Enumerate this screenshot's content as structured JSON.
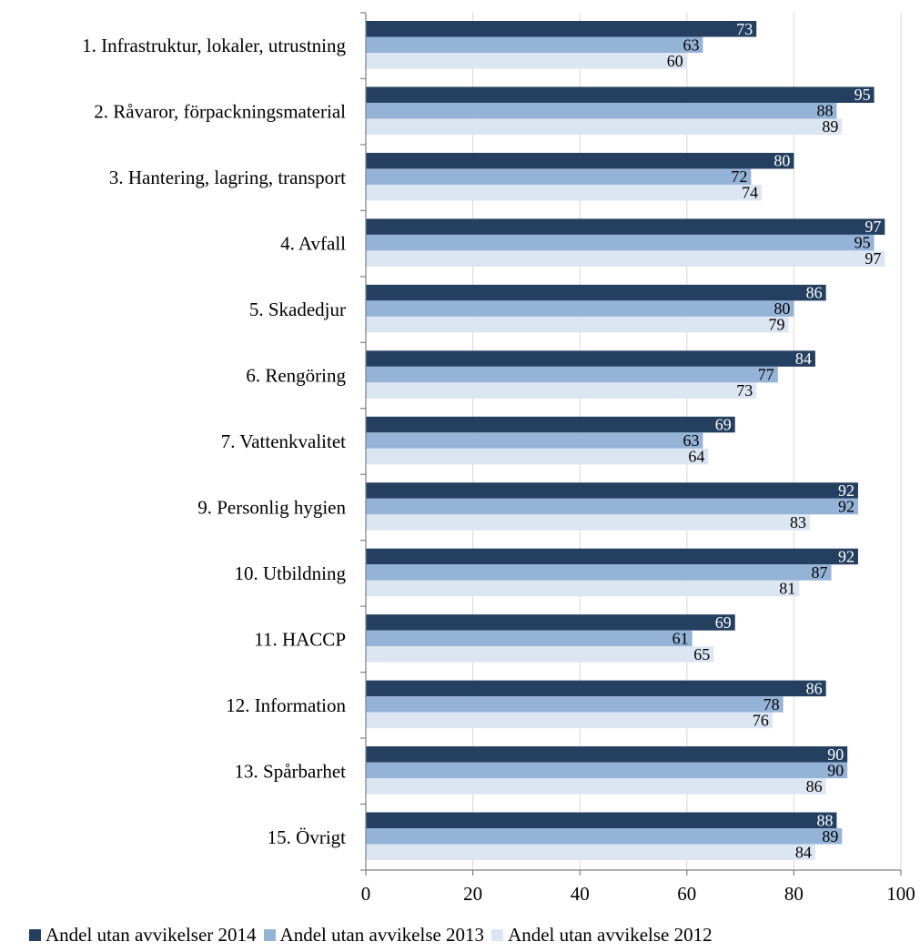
{
  "chart_data": {
    "type": "bar",
    "orientation": "horizontal",
    "categories": [
      "1. Infrastruktur, lokaler, utrustning",
      "2. Råvaror, förpackningsmaterial",
      "3. Hantering, lagring, transport",
      "4. Avfall",
      "5. Skadedjur",
      "6. Rengöring",
      "7. Vattenkvalitet",
      "9. Personlig hygien",
      "10. Utbildning",
      "11. HACCP",
      "12. Information",
      "13. Spårbarhet",
      "15. Övrigt"
    ],
    "series": [
      {
        "name": "Andel utan avvikelser 2014",
        "color": "#243f60",
        "values": [
          73,
          95,
          80,
          97,
          86,
          84,
          69,
          92,
          92,
          69,
          86,
          90,
          88
        ]
      },
      {
        "name": "Andel utan avvikelse 2013",
        "color": "#95b3d7",
        "values": [
          63,
          88,
          72,
          95,
          80,
          77,
          63,
          92,
          87,
          61,
          78,
          90,
          89
        ]
      },
      {
        "name": "Andel utan avvikelse 2012",
        "color": "#dce6f2",
        "values": [
          60,
          89,
          74,
          97,
          79,
          73,
          64,
          83,
          81,
          65,
          76,
          86,
          84
        ]
      }
    ],
    "xlim": [
      0,
      100
    ],
    "xticks": [
      0,
      20,
      40,
      60,
      80,
      100
    ],
    "grid": true,
    "legend_position": "bottom",
    "title": "",
    "xlabel": "",
    "ylabel": ""
  }
}
